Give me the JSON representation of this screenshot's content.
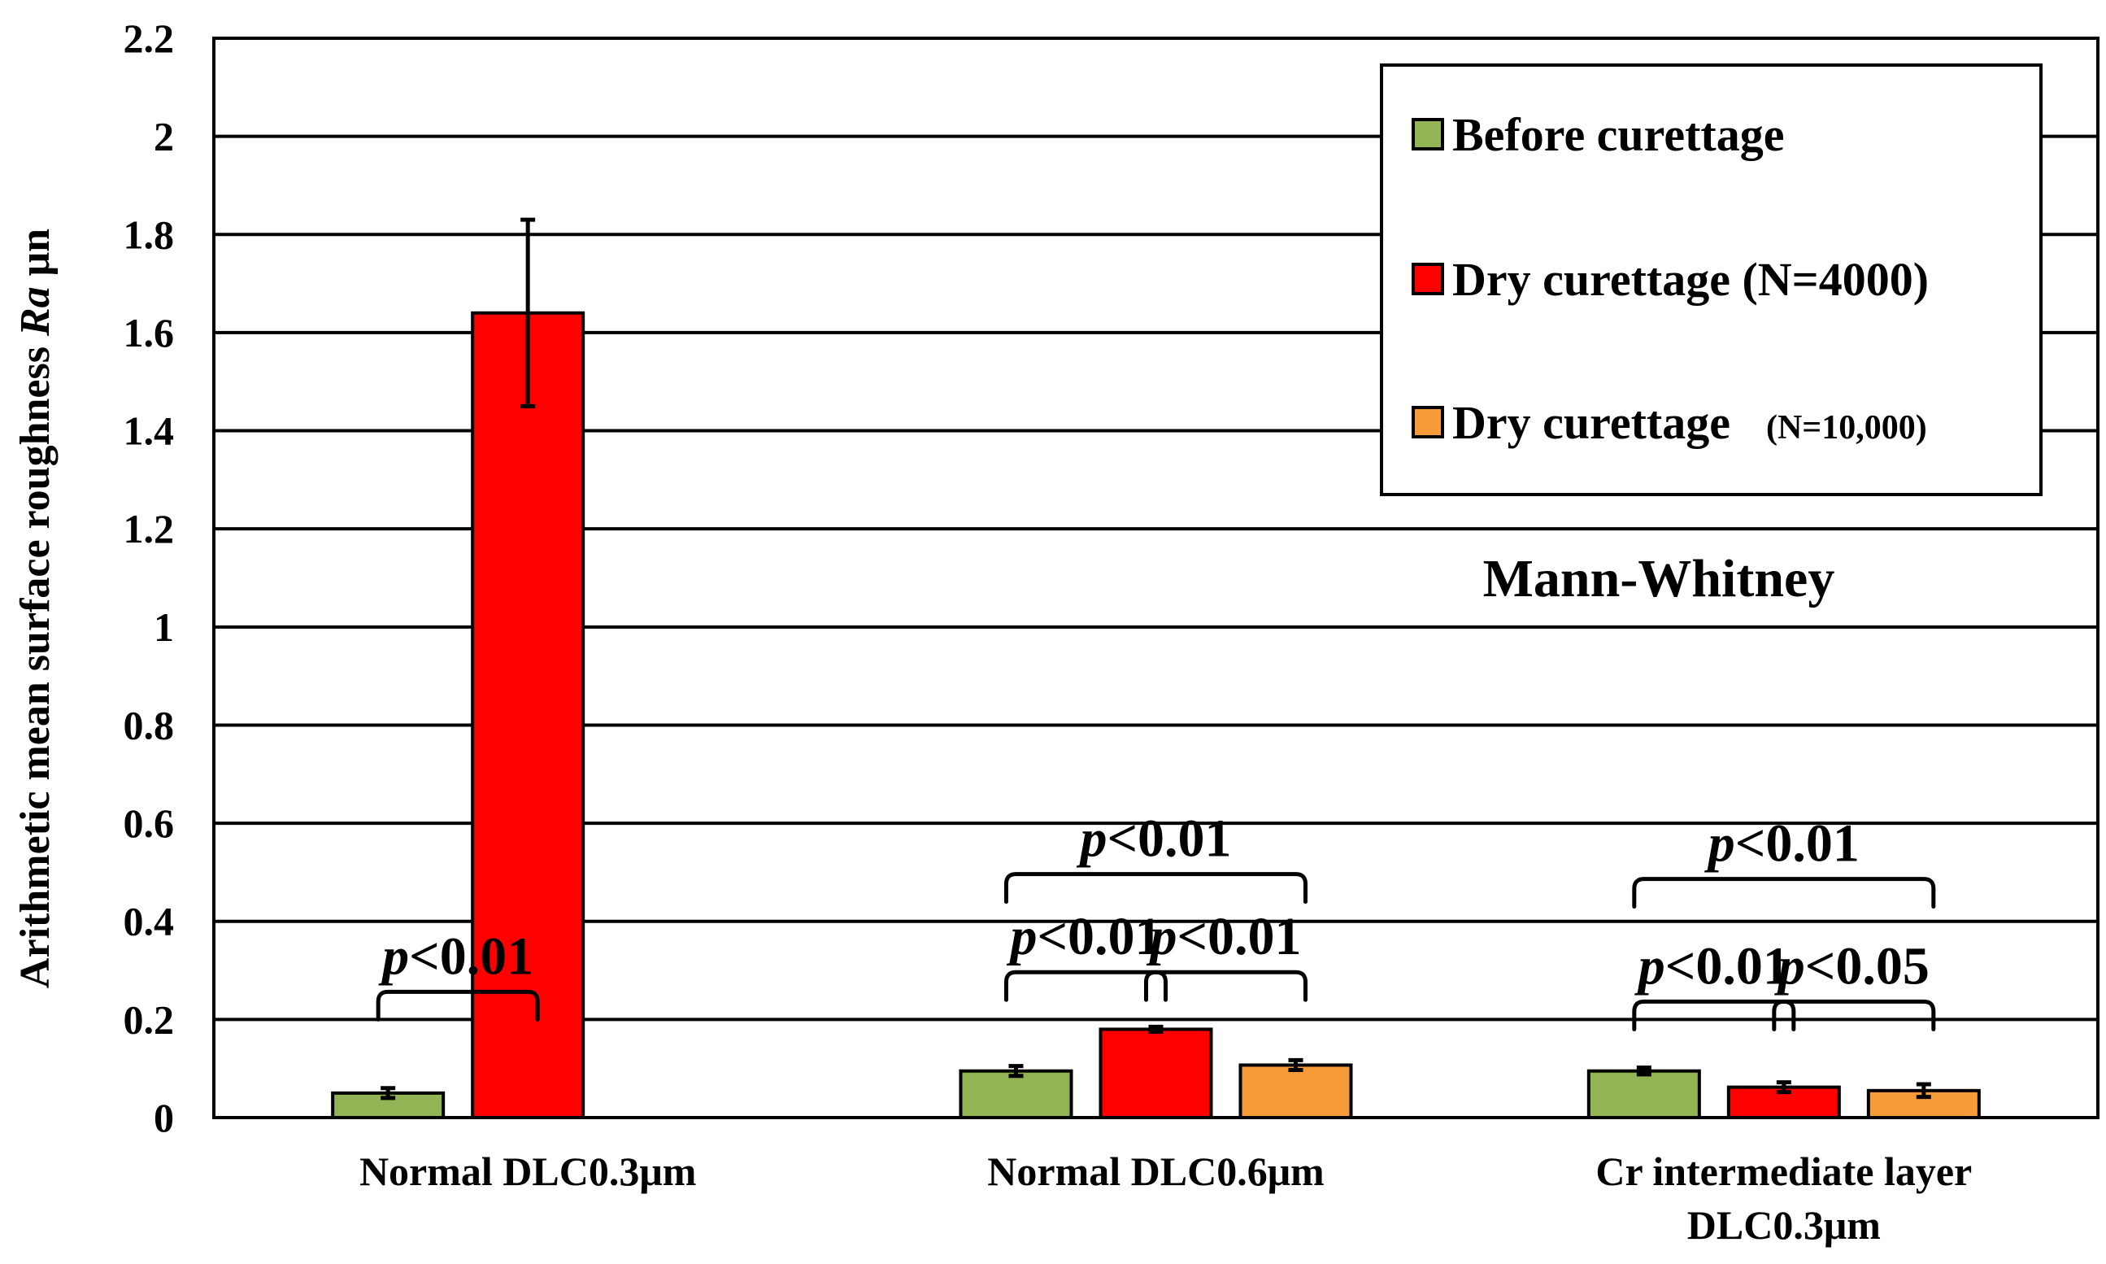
{
  "chart_data": {
    "type": "bar",
    "title": "",
    "xlabel": "",
    "ylabel": "Arithmetic mean surface roughness",
    "ylabel_symbol": "Ra",
    "ylabel_unit": "μn",
    "ylim": [
      0,
      2.2
    ],
    "yticks": [
      "0",
      "0.2",
      "0.4",
      "0.6",
      "0.8",
      "1",
      "1.2",
      "1.4",
      "1.6",
      "1.8",
      "2",
      "2.2"
    ],
    "grid": true,
    "legend_position": "top-right",
    "categories": [
      [
        "Normal DLC0.3μm"
      ],
      [
        "Normal DLC0.6μm"
      ],
      [
        "Cr intermediate layer",
        "DLC0.3μm"
      ]
    ],
    "series": [
      {
        "name": "Before curettage",
        "name_suffix": "",
        "color": "#92B454",
        "values": [
          0.05,
          0.095,
          0.095
        ],
        "errors": [
          0.01,
          0.01,
          0.007
        ]
      },
      {
        "name": "Dry curettage (N=4000)",
        "name_suffix": "",
        "color": "#FF0000",
        "values": [
          1.64,
          0.18,
          0.062
        ],
        "errors": [
          0.19,
          0.005,
          0.01
        ]
      },
      {
        "name": "Dry curettage",
        "name_suffix": "(N=10,000)",
        "color": "#F79A38",
        "values": [
          null,
          0.107,
          0.055
        ],
        "errors": [
          null,
          0.01,
          0.013
        ]
      }
    ],
    "annotations": {
      "test_label": "Mann-Whitney",
      "significance": [
        {
          "group": 0,
          "from": 0,
          "to": 1,
          "prefix": "p",
          "text": "<0.01",
          "level": 0.2
        },
        {
          "group": 1,
          "from": 0,
          "to": 1,
          "prefix": "p",
          "text": "<0.01",
          "level": 0.24
        },
        {
          "group": 1,
          "from": 1,
          "to": 2,
          "prefix": "p",
          "text": "<0.01",
          "level": 0.24
        },
        {
          "group": 1,
          "from": 0,
          "to": 2,
          "prefix": "p",
          "text": "<0.01",
          "level": 0.44
        },
        {
          "group": 2,
          "from": 0,
          "to": 1,
          "prefix": "p",
          "text": "<0.01",
          "level": 0.18
        },
        {
          "group": 2,
          "from": 1,
          "to": 2,
          "prefix": "p",
          "text": "<0.05",
          "level": 0.18
        },
        {
          "group": 2,
          "from": 0,
          "to": 2,
          "prefix": "p",
          "text": "<0.01",
          "level": 0.43
        }
      ]
    }
  }
}
